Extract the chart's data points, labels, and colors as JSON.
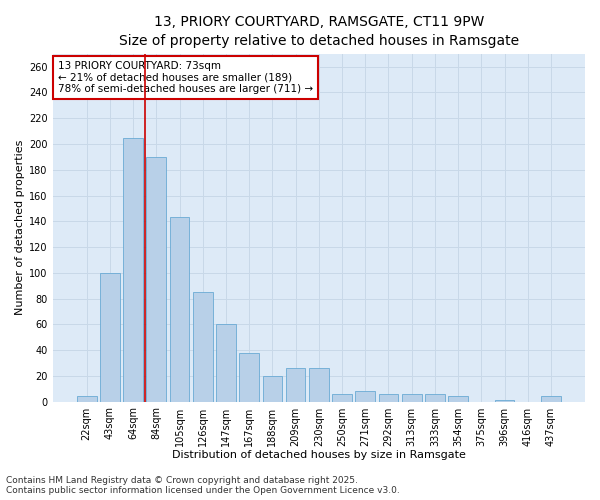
{
  "title_line1": "13, PRIORY COURTYARD, RAMSGATE, CT11 9PW",
  "title_line2": "Size of property relative to detached houses in Ramsgate",
  "xlabel": "Distribution of detached houses by size in Ramsgate",
  "ylabel": "Number of detached properties",
  "categories": [
    "22sqm",
    "43sqm",
    "64sqm",
    "84sqm",
    "105sqm",
    "126sqm",
    "147sqm",
    "167sqm",
    "188sqm",
    "209sqm",
    "230sqm",
    "250sqm",
    "271sqm",
    "292sqm",
    "313sqm",
    "333sqm",
    "354sqm",
    "375sqm",
    "396sqm",
    "416sqm",
    "437sqm"
  ],
  "values": [
    4,
    100,
    205,
    190,
    143,
    85,
    60,
    38,
    20,
    26,
    26,
    6,
    8,
    6,
    6,
    6,
    4,
    0,
    1,
    0,
    4
  ],
  "bar_color": "#b8d0e8",
  "bar_edgecolor": "#6aaad4",
  "redline_x": 2.5,
  "annotation_title": "13 PRIORY COURTYARD: 73sqm",
  "annotation_line1": "← 21% of detached houses are smaller (189)",
  "annotation_line2": "78% of semi-detached houses are larger (711) →",
  "annotation_box_edgecolor": "#cc0000",
  "redline_color": "#cc0000",
  "ylim": [
    0,
    270
  ],
  "yticks": [
    0,
    20,
    40,
    60,
    80,
    100,
    120,
    140,
    160,
    180,
    200,
    220,
    240,
    260
  ],
  "grid_color": "#c8d8e8",
  "background_color": "#ddeaf7",
  "footer_line1": "Contains HM Land Registry data © Crown copyright and database right 2025.",
  "footer_line2": "Contains public sector information licensed under the Open Government Licence v3.0.",
  "title_fontsize": 10,
  "subtitle_fontsize": 9,
  "axis_label_fontsize": 8,
  "tick_fontsize": 7,
  "annotation_fontsize": 7.5,
  "footer_fontsize": 6.5
}
